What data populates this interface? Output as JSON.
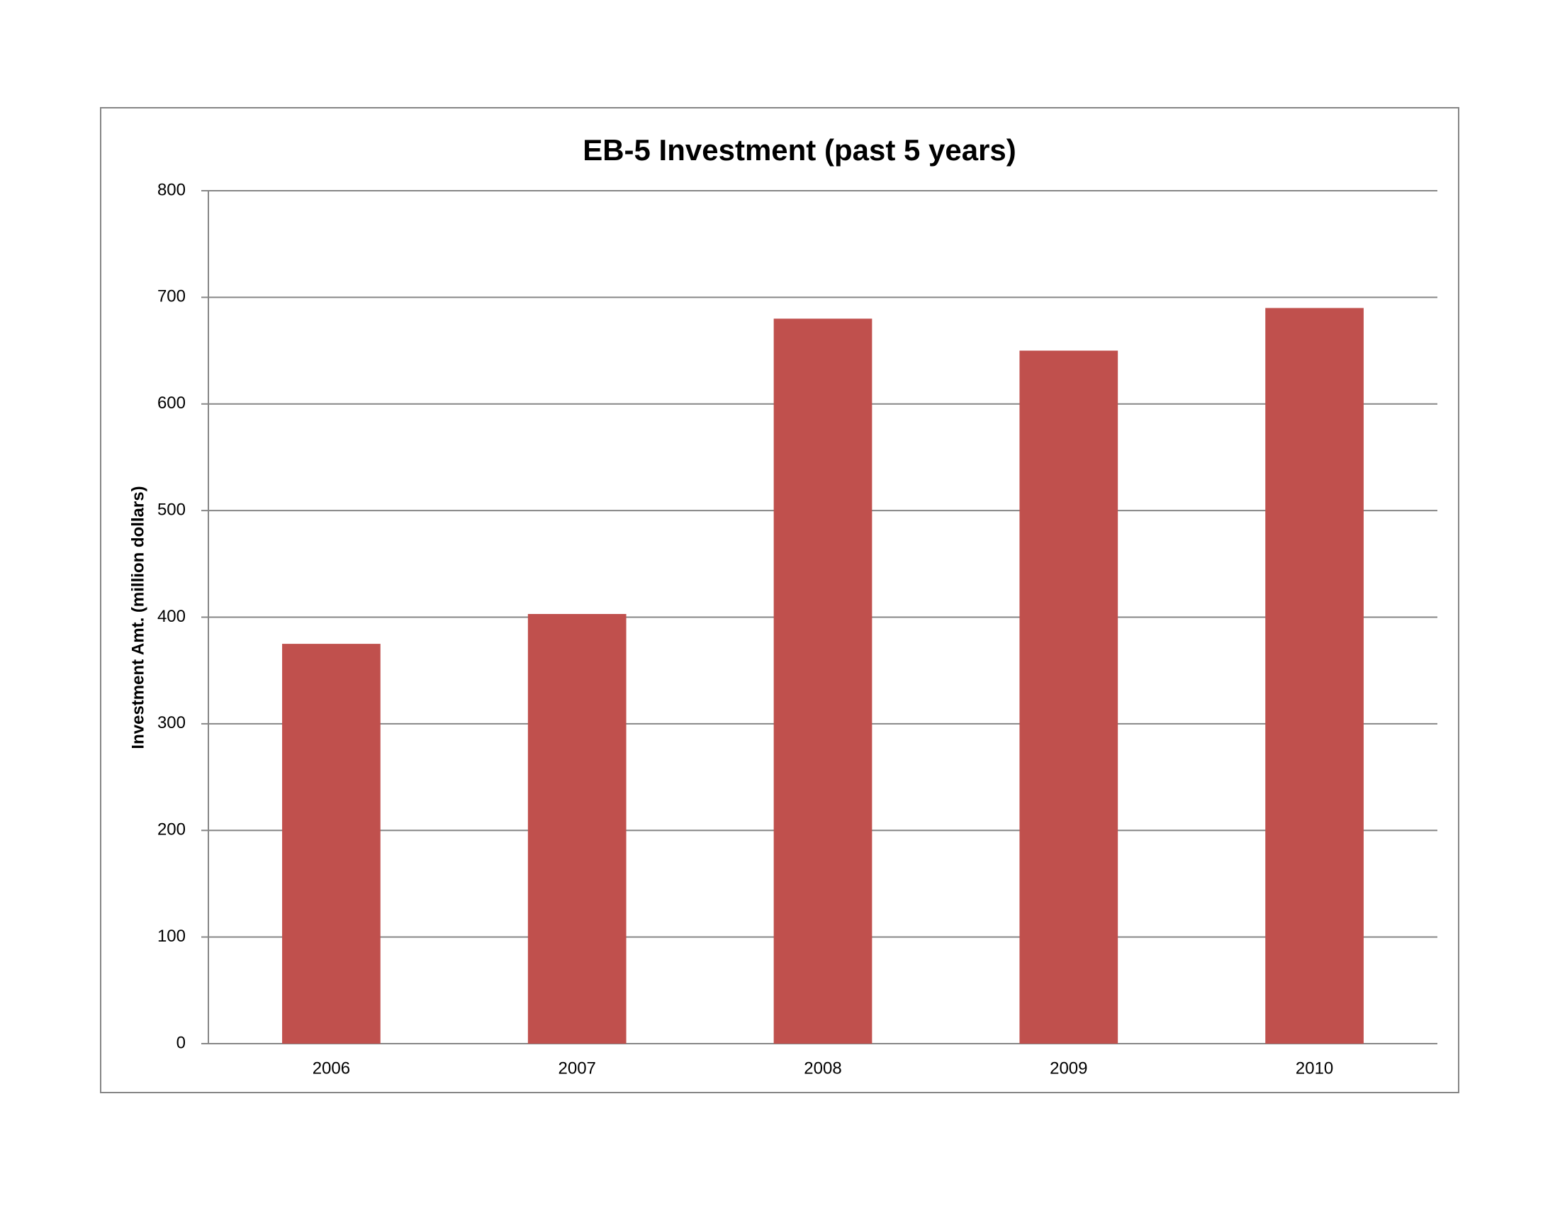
{
  "chart_data": {
    "type": "bar",
    "title": "EB-5 Investment (past 5 years)",
    "y_label": "Investment Amt. (million dollars)",
    "categories": [
      "2006",
      "2007",
      "2008",
      "2009",
      "2010"
    ],
    "values": [
      375,
      403,
      680,
      650,
      690
    ],
    "color": "#c0504d",
    "ylim": [
      0,
      800
    ],
    "yticks": [
      0,
      100,
      200,
      300,
      400,
      500,
      600,
      700,
      800
    ],
    "grid": true
  }
}
